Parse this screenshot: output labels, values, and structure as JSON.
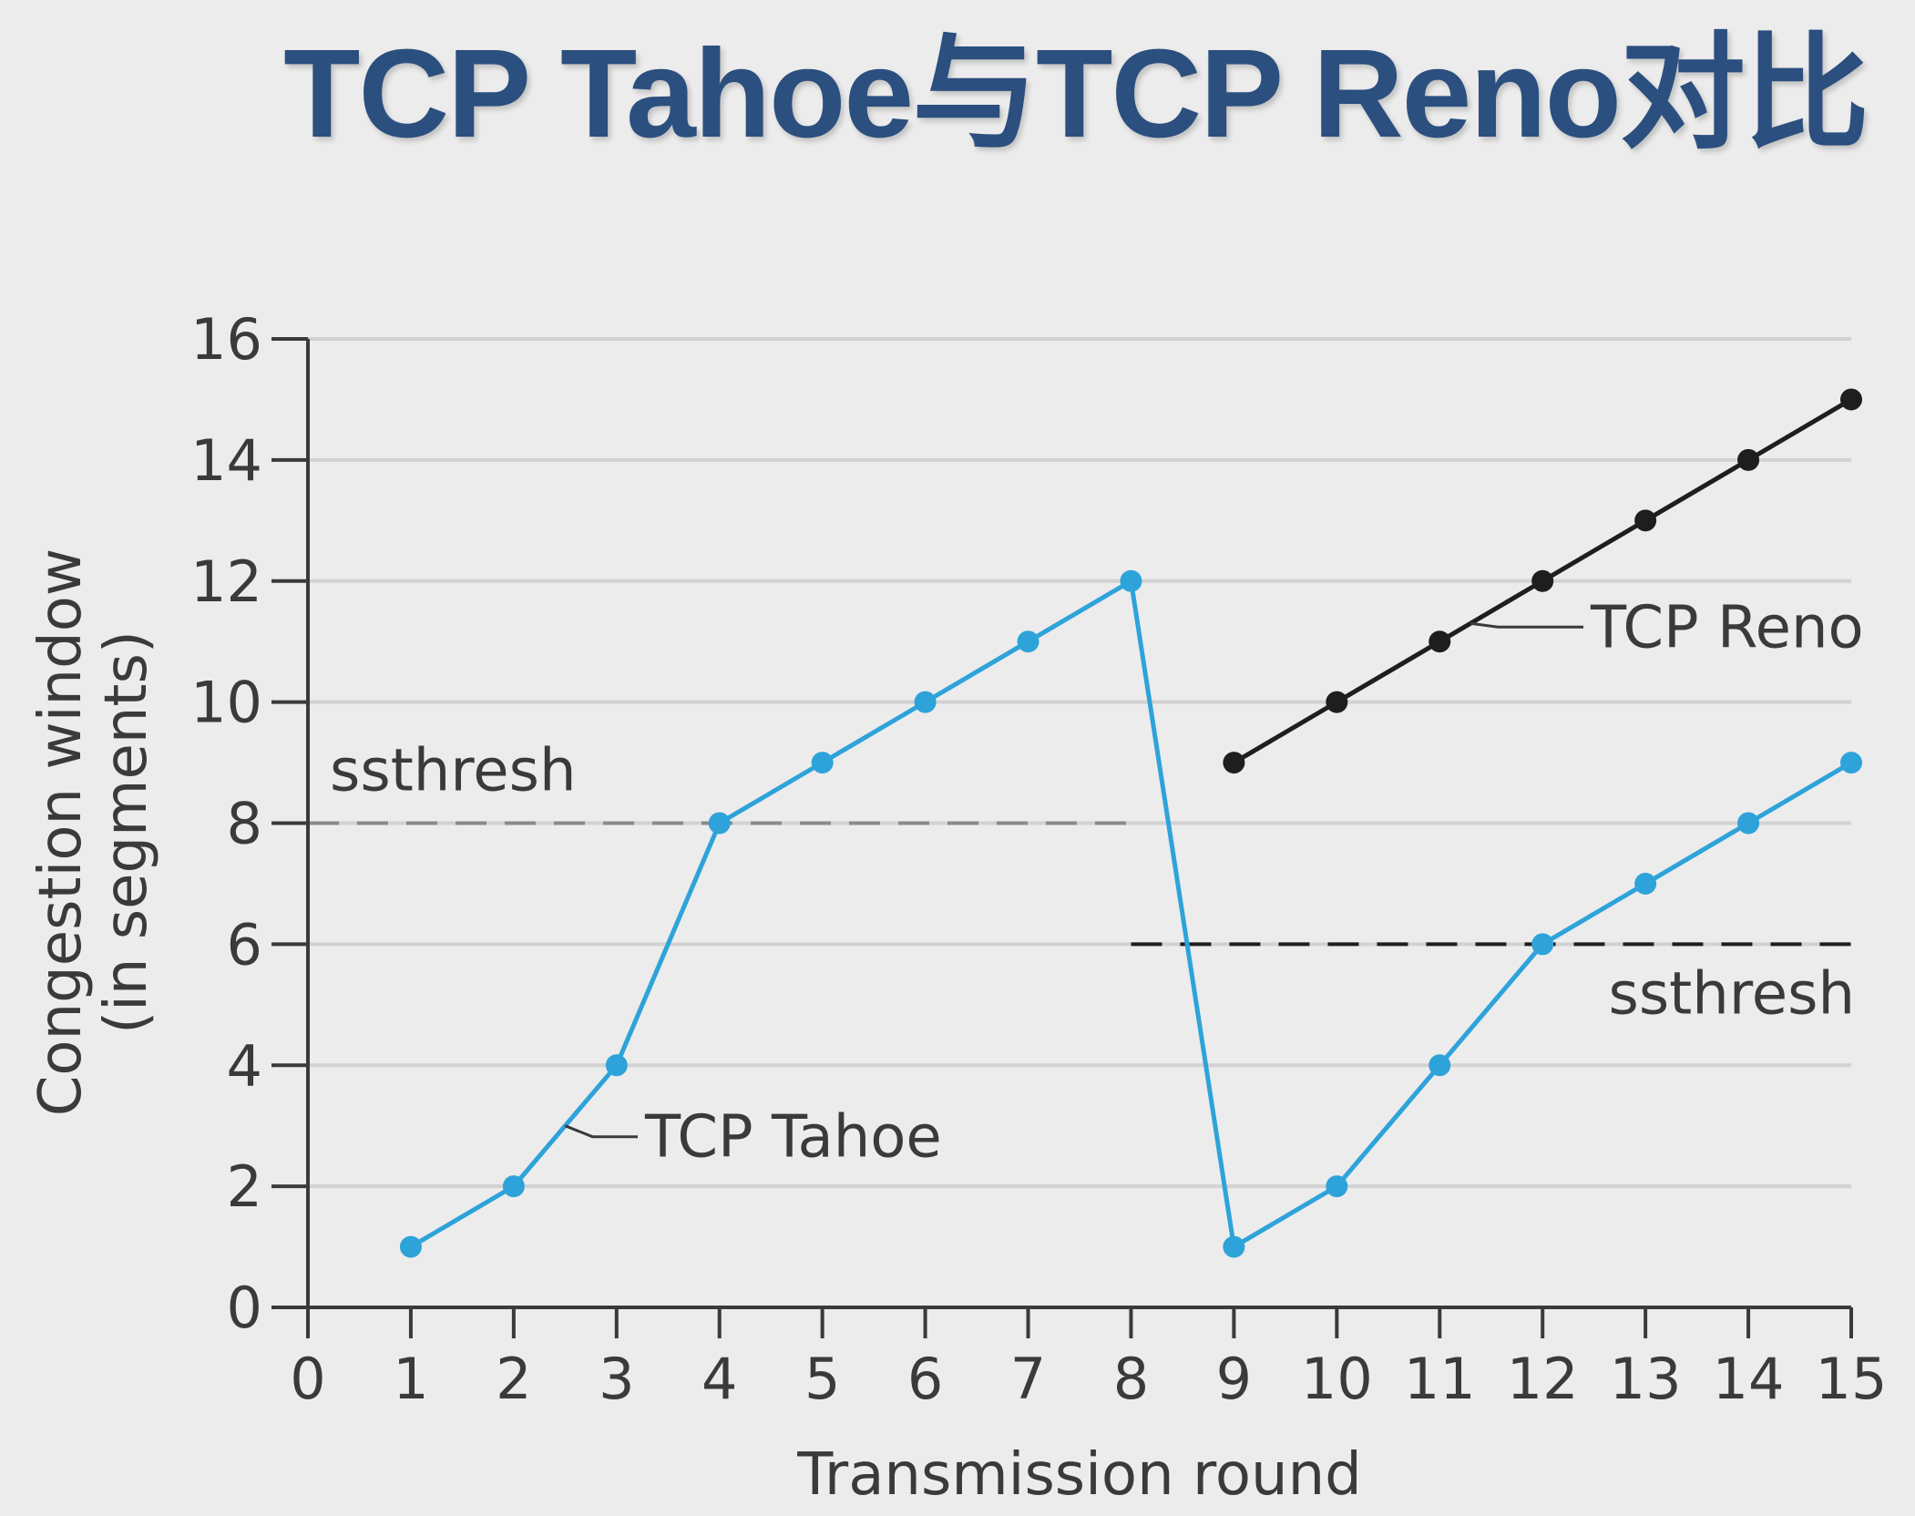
{
  "page": {
    "title": "TCP Tahoe与TCP Reno对比"
  },
  "chart_data": {
    "type": "line",
    "title": "",
    "xlabel": "Transmission round",
    "ylabel": "Congestion window (in segments)",
    "ylabel_lines": [
      "Congestion window",
      "(in segments)"
    ],
    "xlim": [
      0,
      15
    ],
    "ylim": [
      0,
      16
    ],
    "x_ticks": [
      0,
      1,
      2,
      3,
      4,
      5,
      6,
      7,
      8,
      9,
      10,
      11,
      12,
      13,
      14,
      15
    ],
    "y_ticks": [
      0,
      2,
      4,
      6,
      8,
      10,
      12,
      14,
      16
    ],
    "grid": true,
    "series": [
      {
        "name": "TCP Tahoe",
        "color": "#2ea3da",
        "points": [
          [
            1,
            1
          ],
          [
            2,
            2
          ],
          [
            3,
            4
          ],
          [
            4,
            8
          ],
          [
            5,
            9
          ],
          [
            6,
            10
          ],
          [
            7,
            11
          ],
          [
            8,
            12
          ],
          [
            9,
            1
          ],
          [
            10,
            2
          ],
          [
            11,
            4
          ],
          [
            12,
            6
          ],
          [
            13,
            7
          ],
          [
            14,
            8
          ],
          [
            15,
            9
          ]
        ]
      },
      {
        "name": "TCP Reno",
        "color": "#1e1e1e",
        "points": [
          [
            9,
            9
          ],
          [
            10,
            10
          ],
          [
            11,
            11
          ],
          [
            12,
            12
          ],
          [
            13,
            13
          ],
          [
            14,
            14
          ],
          [
            15,
            15
          ]
        ]
      }
    ],
    "thresholds": [
      {
        "label": "ssthresh",
        "y": 8,
        "x_range": [
          0,
          8
        ],
        "color": "#8a8a8a"
      },
      {
        "label": "ssthresh",
        "y": 6,
        "x_range": [
          8,
          15
        ],
        "color": "#1e1e1e"
      }
    ],
    "annotations": [
      {
        "text": "TCP Tahoe",
        "series": "TCP Tahoe",
        "anchor": [
          2.5,
          3
        ]
      },
      {
        "text": "TCP Reno",
        "series": "TCP Reno",
        "anchor": [
          11.3,
          11.3
        ]
      }
    ]
  }
}
